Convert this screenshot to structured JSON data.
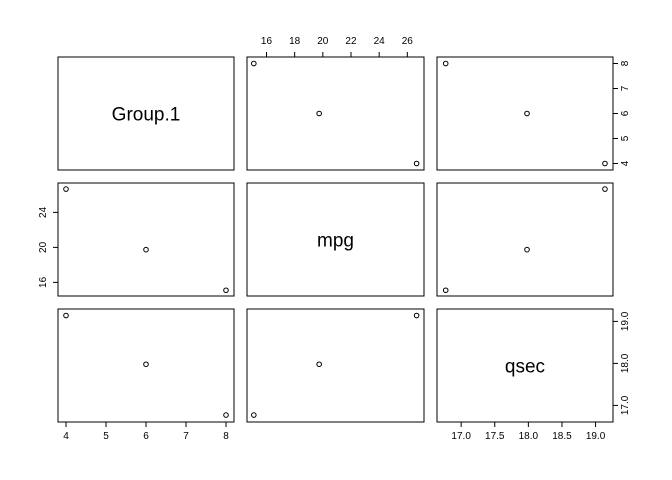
{
  "chart_data": {
    "type": "scatter",
    "title": "",
    "layout": "pairs-matrix",
    "grid": false,
    "variables": [
      "Group.1",
      "mpg",
      "qsec"
    ],
    "observations": [
      {
        "Group.1": 4,
        "mpg": 26.66,
        "qsec": 19.14
      },
      {
        "Group.1": 6,
        "mpg": 19.74,
        "qsec": 17.98
      },
      {
        "Group.1": 8,
        "mpg": 15.1,
        "qsec": 16.77
      }
    ],
    "axes": {
      "Group.1": {
        "range": [
          3.9,
          8.1
        ],
        "ticks": [
          4,
          5,
          6,
          7,
          8
        ],
        "tick_labels": [
          "4",
          "5",
          "6",
          "7",
          "8"
        ]
      },
      "mpg": {
        "range": [
          14.9,
          26.9
        ],
        "ticks": [
          16,
          18,
          20,
          22,
          24,
          26
        ],
        "tick_labels": [
          "16",
          "18",
          "20",
          "22",
          "24",
          "26"
        ],
        "left_ticks": [
          16,
          20,
          24
        ],
        "left_tick_labels": [
          "16",
          "20",
          "24"
        ]
      },
      "qsec": {
        "range": [
          16.7,
          19.2
        ],
        "ticks": [
          17.0,
          17.5,
          18.0,
          18.5,
          19.0
        ],
        "tick_labels": [
          "17.0",
          "17.5",
          "18.0",
          "18.5",
          "19.0"
        ],
        "right_ticks": [
          17.0,
          18.0,
          19.0
        ],
        "right_tick_labels": [
          "17.0",
          "18.0",
          "19.0"
        ]
      }
    },
    "right_axis_top": {
      "ticks": [
        4,
        5,
        6,
        7,
        8
      ],
      "tick_labels": [
        "4",
        "5",
        "6",
        "7",
        "8"
      ]
    }
  }
}
